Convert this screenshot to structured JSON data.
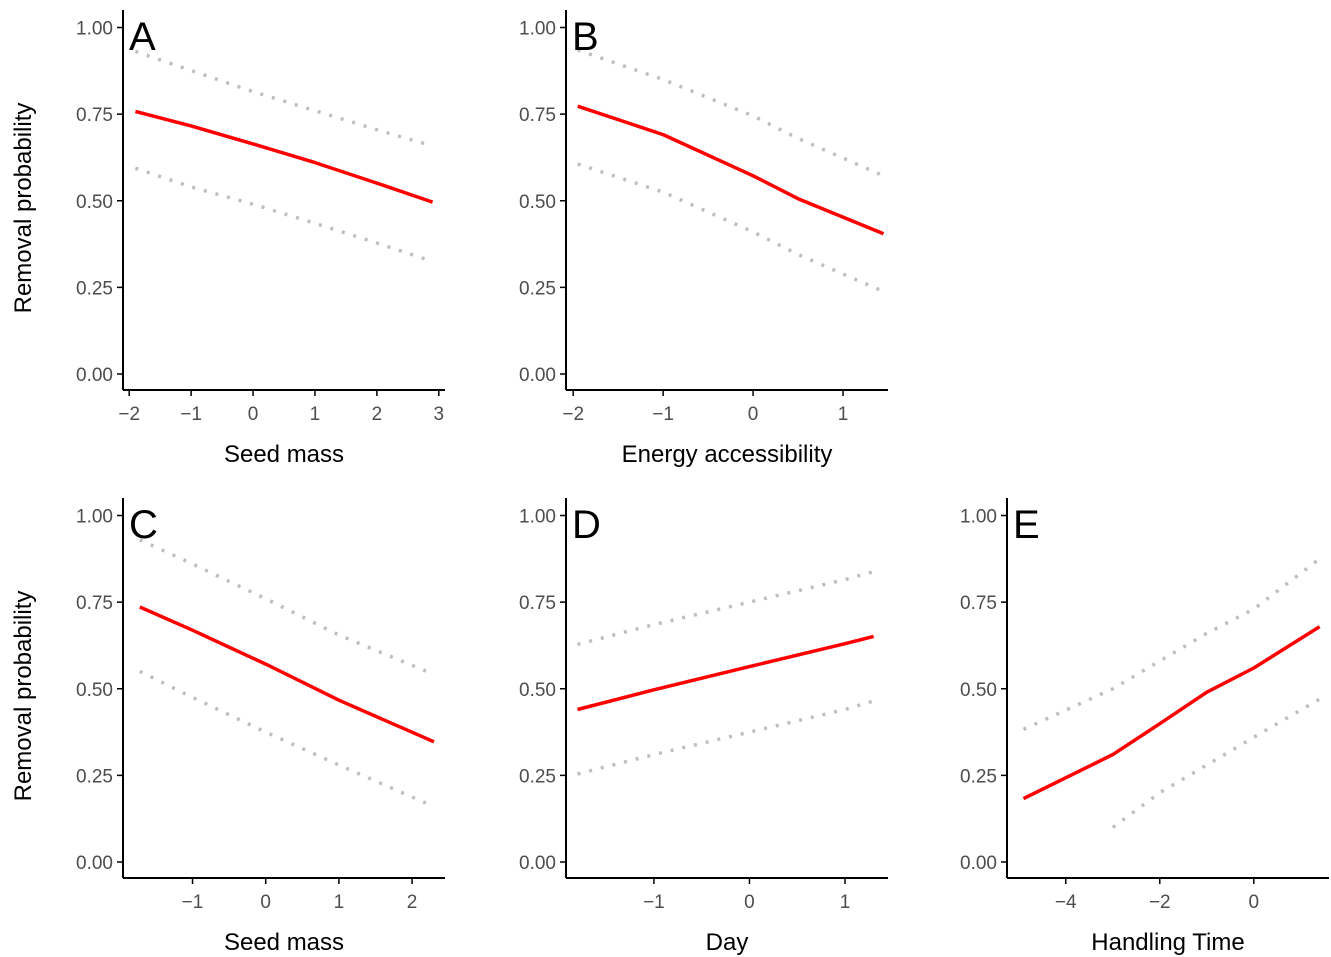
{
  "colors": {
    "fit": "#ff0000",
    "ci": "#bebebe",
    "axis": "#000000",
    "tick_label": "#4d4d4d"
  },
  "chart_data": [
    {
      "type": "line",
      "panel": "A",
      "xlabel": "Seed mass",
      "ylabel": "Removal probability",
      "xlim": [
        -2.1,
        3.1
      ],
      "ylim": [
        0,
        1
      ],
      "xticks": [
        -2,
        -1,
        0,
        1,
        2,
        3
      ],
      "xtick_labels": [
        "−2",
        "−1",
        "0",
        "1",
        "2",
        "3"
      ],
      "yticks": [
        0,
        0.25,
        0.5,
        0.75,
        1
      ],
      "ytick_labels": [
        "0.00",
        "0.25",
        "0.50",
        "0.75",
        "1.00"
      ],
      "series": [
        {
          "role": "fit",
          "x": [
            -1.9,
            -1.0,
            0.0,
            1.0,
            2.0,
            2.9
          ],
          "y": [
            0.758,
            0.716,
            0.664,
            0.61,
            0.551,
            0.496
          ]
        },
        {
          "role": "upper",
          "x": [
            -1.9,
            -1.0,
            0.0,
            1.0,
            2.0,
            2.9
          ],
          "y": [
            0.931,
            0.876,
            0.815,
            0.76,
            0.705,
            0.658
          ]
        },
        {
          "role": "lower",
          "x": [
            -1.9,
            -1.0,
            0.0,
            1.0,
            2.0,
            2.9
          ],
          "y": [
            0.594,
            0.54,
            0.49,
            0.435,
            0.378,
            0.325
          ]
        }
      ]
    },
    {
      "type": "line",
      "panel": "B",
      "xlabel": "Energy accessibility",
      "ylabel": "",
      "xlim": [
        -2.08,
        1.5
      ],
      "ylim": [
        0,
        1
      ],
      "xticks": [
        -2,
        -1,
        0,
        1
      ],
      "xtick_labels": [
        "−2",
        "−1",
        "0",
        "1"
      ],
      "yticks": [
        0,
        0.25,
        0.5,
        0.75,
        1
      ],
      "ytick_labels": [
        "0.00",
        "0.25",
        "0.50",
        "0.75",
        "1.00"
      ],
      "series": [
        {
          "role": "fit",
          "x": [
            -1.95,
            -1.0,
            0.0,
            0.5,
            1.45
          ],
          "y": [
            0.773,
            0.691,
            0.572,
            0.506,
            0.405
          ]
        },
        {
          "role": "upper",
          "x": [
            -1.95,
            -1.0,
            0.0,
            0.5,
            1.45
          ],
          "y": [
            0.935,
            0.85,
            0.745,
            0.68,
            0.572
          ]
        },
        {
          "role": "lower",
          "x": [
            -1.95,
            -1.0,
            0.0,
            0.5,
            1.45
          ],
          "y": [
            0.606,
            0.525,
            0.41,
            0.345,
            0.238
          ]
        }
      ]
    },
    {
      "type": "line",
      "panel": "C",
      "xlabel": "Seed mass",
      "ylabel": "Removal probability",
      "xlim": [
        -1.95,
        2.45
      ],
      "ylim": [
        0,
        1
      ],
      "xticks": [
        -1,
        0,
        1,
        2
      ],
      "xtick_labels": [
        "−1",
        "0",
        "1",
        "2"
      ],
      "yticks": [
        0,
        0.25,
        0.5,
        0.75,
        1
      ],
      "ytick_labels": [
        "0.00",
        "0.25",
        "0.50",
        "0.75",
        "1.00"
      ],
      "series": [
        {
          "role": "fit",
          "x": [
            -1.72,
            -1.0,
            0.0,
            1.0,
            2.3
          ],
          "y": [
            0.736,
            0.669,
            0.571,
            0.467,
            0.347
          ]
        },
        {
          "role": "upper",
          "x": [
            -1.72,
            -1.0,
            0.0,
            1.0,
            2.2
          ],
          "y": [
            0.93,
            0.86,
            0.76,
            0.655,
            0.55
          ]
        },
        {
          "role": "lower",
          "x": [
            -1.72,
            -1.0,
            0.0,
            1.0,
            2.3
          ],
          "y": [
            0.55,
            0.475,
            0.375,
            0.28,
            0.16
          ]
        }
      ]
    },
    {
      "type": "line",
      "panel": "D",
      "xlabel": "Day",
      "ylabel": "",
      "xlim": [
        -1.92,
        1.45
      ],
      "ylim": [
        0,
        1
      ],
      "xticks": [
        -1,
        0,
        1
      ],
      "xtick_labels": [
        "−1",
        "0",
        "1"
      ],
      "yticks": [
        0,
        0.25,
        0.5,
        0.75,
        1
      ],
      "ytick_labels": [
        "0.00",
        "0.25",
        "0.50",
        "0.75",
        "1.00"
      ],
      "series": [
        {
          "role": "fit",
          "x": [
            -1.8,
            -1.0,
            0.0,
            1.0,
            1.3
          ],
          "y": [
            0.44,
            0.497,
            0.564,
            0.63,
            0.651
          ]
        },
        {
          "role": "upper",
          "x": [
            -1.8,
            -1.0,
            0.0,
            1.0,
            1.3
          ],
          "y": [
            0.628,
            0.685,
            0.75,
            0.815,
            0.838
          ]
        },
        {
          "role": "lower",
          "x": [
            -1.8,
            -1.0,
            0.0,
            1.0,
            1.3
          ],
          "y": [
            0.254,
            0.31,
            0.375,
            0.44,
            0.465
          ]
        }
      ]
    },
    {
      "type": "line",
      "panel": "E",
      "xlabel": "Handling Time",
      "ylabel": "",
      "xlim": [
        -5.25,
        1.6
      ],
      "ylim": [
        0,
        1
      ],
      "xticks": [
        -4,
        -2,
        0
      ],
      "xtick_labels": [
        "−4",
        "−2",
        "0"
      ],
      "yticks": [
        0,
        0.25,
        0.5,
        0.75,
        1
      ],
      "ytick_labels": [
        "0.00",
        "0.25",
        "0.50",
        "0.75",
        "1.00"
      ],
      "series": [
        {
          "role": "fit",
          "x": [
            -4.9,
            -3.0,
            -2.0,
            -1.0,
            0.0,
            1.4
          ],
          "y": [
            0.183,
            0.31,
            0.399,
            0.49,
            0.56,
            0.679
          ]
        },
        {
          "role": "upper",
          "x": [
            -4.9,
            -3.0,
            -2.0,
            -1.0,
            0.0,
            1.4
          ],
          "y": [
            0.383,
            0.5,
            0.58,
            0.66,
            0.73,
            0.875
          ]
        },
        {
          "role": "lower",
          "x": [
            -3.0,
            -2.0,
            -1.0,
            0.0,
            1.4
          ],
          "y": [
            0.1,
            0.2,
            0.28,
            0.36,
            0.47
          ]
        }
      ]
    }
  ]
}
